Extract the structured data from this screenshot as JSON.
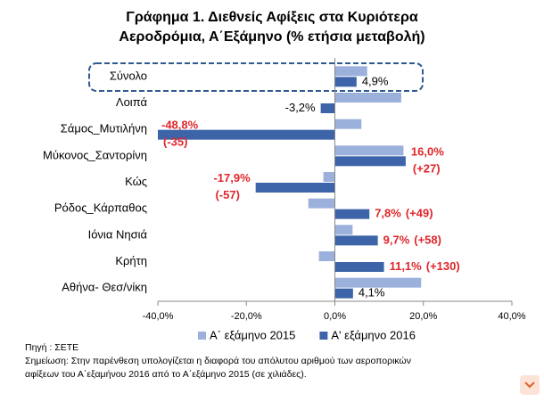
{
  "chart_data": {
    "type": "bar",
    "orientation": "horizontal",
    "title": [
      "Γράφημα 1. Διεθνείς Αφίξεις στα Κυριότερα",
      "Αεροδρόμια, Α΄Εξάμηνο (% ετήσια μεταβολή)"
    ],
    "categories": [
      "Σύνολο",
      "Λοιπά",
      "Σάμος_Μυτιλήνη",
      "Μύκονος_Σαντορίνη",
      "Κώς",
      "Ρόδος_Κάρπαθος",
      "Ιόνια Νησιά",
      "Κρήτη",
      "Αθήνα- Θεσ/νίκη"
    ],
    "series": [
      {
        "name": "Α΄ εξάμηνο 2015",
        "color": "#9bb0db",
        "values": [
          7.3,
          15,
          6,
          15.5,
          -2.6,
          -6,
          4,
          -3.6,
          19.5
        ]
      },
      {
        "name": "Α' εξάμηνο 2016",
        "color": "#3d64a8",
        "values": [
          4.9,
          -3.2,
          -48.8,
          16.0,
          -17.9,
          7.8,
          9.7,
          11.1,
          4.1
        ],
        "value_labels": [
          "4,9%",
          "-3,2%",
          "-48,8%",
          "16,0%",
          "-17,9%",
          "7,8%",
          "9,7%",
          "11,1%",
          "4,1%"
        ],
        "label_colors": [
          "#000000",
          "#000000",
          "#e0262a",
          "#e0262a",
          "#e0262a",
          "#e0262a",
          "#e0262a",
          "#e0262a",
          "#000000"
        ],
        "differences": [
          null,
          null,
          "(-35)",
          "(+27)",
          "(-57)",
          "(+49)",
          "(+58)",
          "(+130)",
          null
        ]
      }
    ],
    "xlim": [
      -40,
      40
    ],
    "xticks": [
      {
        "value": -40,
        "label": "-40,0%"
      },
      {
        "value": -20,
        "label": "-20,0%"
      },
      {
        "value": 0,
        "label": "0,0%"
      },
      {
        "value": 20,
        "label": "20,0%"
      },
      {
        "value": 40,
        "label": "40,0%"
      }
    ],
    "legend": "bottom",
    "notes": [
      "Πηγή : ΣΕΤΕ",
      "Σημείωση: Στην παρένθεση υπολογίζεται η διαφορά του απόλυτου αριθμού των αεροπορικών",
      "αφίξεων του Α΄εξαμήνου 2016 από το Α΄εξάμηνο 2015 (σε χιλιάδες)."
    ]
  }
}
